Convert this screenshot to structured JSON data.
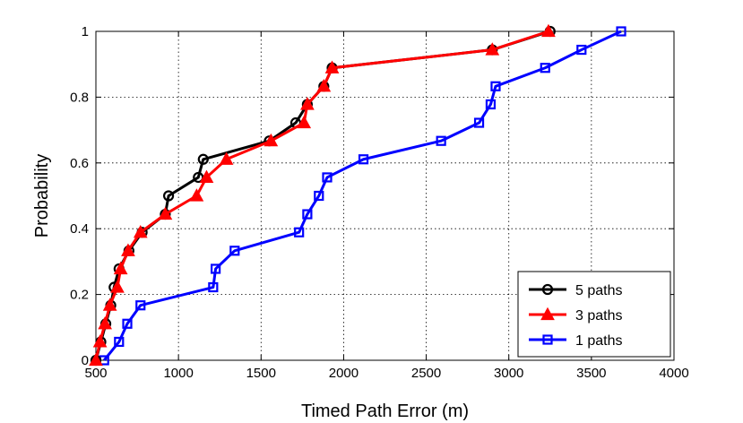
{
  "chart_data": {
    "type": "line",
    "title": "",
    "xlabel": "Timed Path Error (m)",
    "ylabel": "Probability",
    "xlim": [
      500,
      4000
    ],
    "ylim": [
      0,
      1
    ],
    "xticks": [
      500,
      1000,
      1500,
      2000,
      2500,
      3000,
      3500,
      4000
    ],
    "yticks": [
      0,
      0.2,
      0.4,
      0.6,
      0.8,
      1
    ],
    "ytick_labels": [
      "0",
      "0.2",
      "0.4",
      "0.6",
      "0.8",
      "1"
    ],
    "grid": true,
    "legend_position": "bottom-right",
    "series": [
      {
        "name": "5 paths",
        "color": "#000000",
        "marker": "circle",
        "points": [
          [
            500,
            0
          ],
          [
            530,
            0.056
          ],
          [
            560,
            0.111
          ],
          [
            590,
            0.167
          ],
          [
            610,
            0.222
          ],
          [
            640,
            0.278
          ],
          [
            700,
            0.333
          ],
          [
            780,
            0.389
          ],
          [
            920,
            0.444
          ],
          [
            940,
            0.5
          ],
          [
            1120,
            0.556
          ],
          [
            1150,
            0.611
          ],
          [
            1550,
            0.667
          ],
          [
            1710,
            0.722
          ],
          [
            1780,
            0.778
          ],
          [
            1880,
            0.833
          ],
          [
            1930,
            0.889
          ],
          [
            2900,
            0.944
          ],
          [
            3250,
            1.0
          ]
        ]
      },
      {
        "name": "3 paths",
        "color": "#ff0000",
        "marker": "triangle",
        "points": [
          [
            500,
            0
          ],
          [
            525,
            0.056
          ],
          [
            555,
            0.111
          ],
          [
            585,
            0.167
          ],
          [
            630,
            0.222
          ],
          [
            650,
            0.278
          ],
          [
            695,
            0.333
          ],
          [
            770,
            0.389
          ],
          [
            920,
            0.444
          ],
          [
            1110,
            0.5
          ],
          [
            1170,
            0.556
          ],
          [
            1290,
            0.611
          ],
          [
            1560,
            0.667
          ],
          [
            1760,
            0.722
          ],
          [
            1780,
            0.778
          ],
          [
            1880,
            0.833
          ],
          [
            1930,
            0.889
          ],
          [
            2900,
            0.944
          ],
          [
            3240,
            1.0
          ]
        ]
      },
      {
        "name": "1 paths",
        "color": "#0000ff",
        "marker": "square",
        "points": [
          [
            550,
            0
          ],
          [
            640,
            0.056
          ],
          [
            690,
            0.111
          ],
          [
            770,
            0.167
          ],
          [
            1210,
            0.222
          ],
          [
            1225,
            0.278
          ],
          [
            1340,
            0.333
          ],
          [
            1730,
            0.389
          ],
          [
            1780,
            0.444
          ],
          [
            1850,
            0.5
          ],
          [
            1900,
            0.556
          ],
          [
            2120,
            0.611
          ],
          [
            2590,
            0.667
          ],
          [
            2820,
            0.722
          ],
          [
            2890,
            0.778
          ],
          [
            2920,
            0.833
          ],
          [
            3220,
            0.889
          ],
          [
            3440,
            0.944
          ],
          [
            3680,
            1.0
          ]
        ]
      }
    ]
  }
}
